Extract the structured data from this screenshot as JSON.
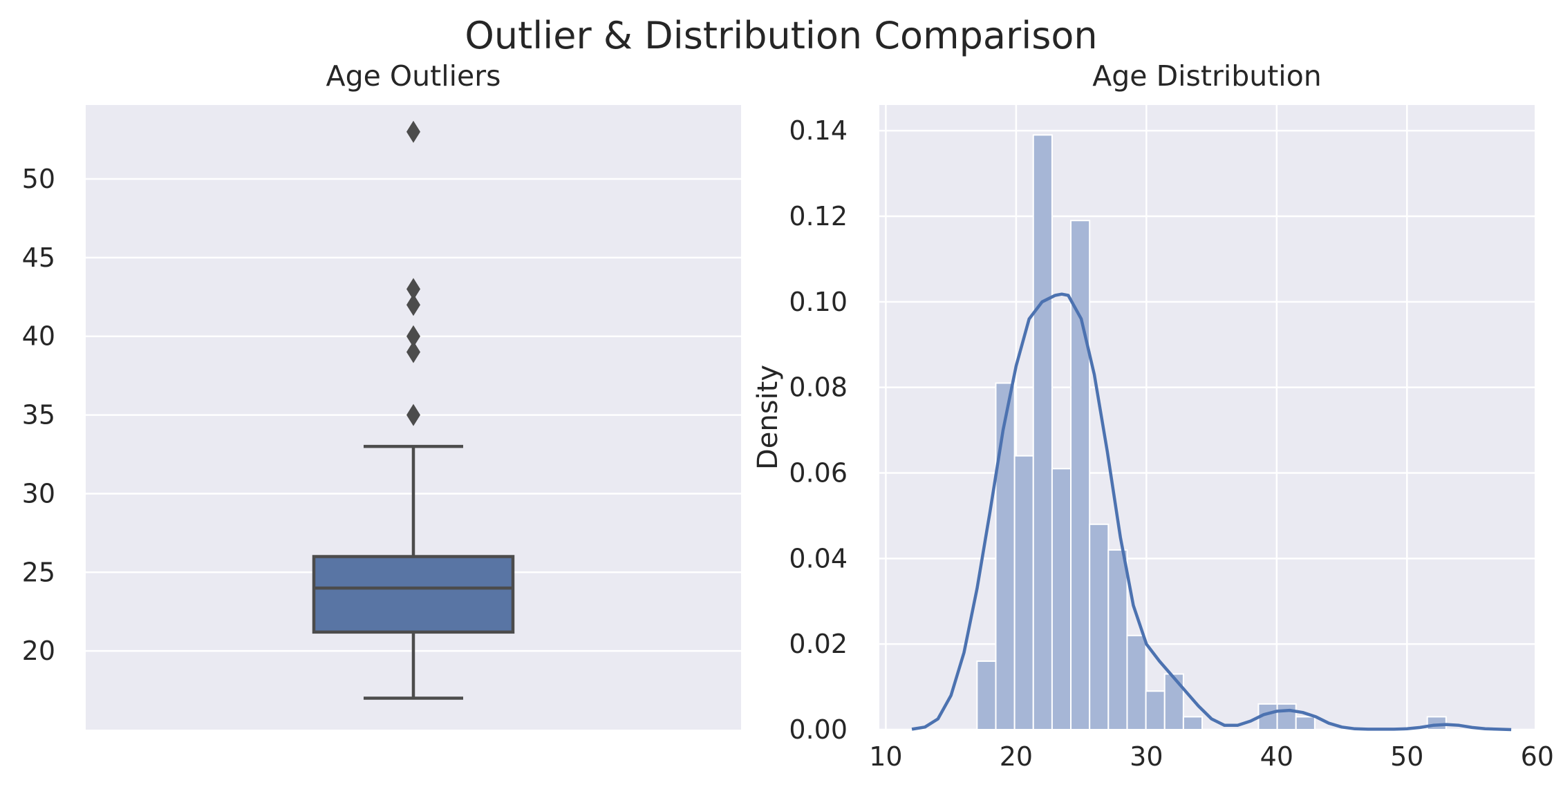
{
  "figure": {
    "title": "Outlier & Distribution Comparison"
  },
  "colors": {
    "panel_bg": "#eaeaf2",
    "grid": "#ffffff",
    "box": "#5975a4",
    "line": "#4c4c4c",
    "hist": "#a6b6d6",
    "kde": "#4c72b0"
  },
  "chart_data": [
    {
      "type": "box",
      "title": "Age Outliers",
      "ylabel": "",
      "ylim": [
        15,
        54.7
      ],
      "yticks": [
        20,
        25,
        30,
        35,
        40,
        45,
        50
      ],
      "stats": {
        "whisker_low": 17,
        "q1": 21.2,
        "median": 24,
        "q3": 26,
        "whisker_high": 33
      },
      "outliers": [
        35,
        39,
        40,
        42,
        43,
        53
      ]
    },
    {
      "type": "histogram",
      "title": "Age Distribution",
      "xlabel": "",
      "ylabel": "Density",
      "xlim": [
        10,
        60
      ],
      "ylim": [
        0,
        0.146
      ],
      "xticks": [
        10,
        20,
        30,
        40,
        50,
        60
      ],
      "yticks": [
        "0.00",
        "0.02",
        "0.04",
        "0.06",
        "0.08",
        "0.10",
        "0.12",
        "0.14"
      ],
      "bin_width": 1.44,
      "bins": [
        {
          "x0": 17.0,
          "density": 0.016
        },
        {
          "x0": 18.44,
          "density": 0.081
        },
        {
          "x0": 19.88,
          "density": 0.064
        },
        {
          "x0": 21.32,
          "density": 0.139
        },
        {
          "x0": 22.76,
          "density": 0.061
        },
        {
          "x0": 24.2,
          "density": 0.119
        },
        {
          "x0": 25.64,
          "density": 0.048
        },
        {
          "x0": 27.08,
          "density": 0.042
        },
        {
          "x0": 28.52,
          "density": 0.022
        },
        {
          "x0": 29.96,
          "density": 0.009
        },
        {
          "x0": 31.4,
          "density": 0.013
        },
        {
          "x0": 32.84,
          "density": 0.003
        },
        {
          "x0": 38.6,
          "density": 0.006
        },
        {
          "x0": 40.04,
          "density": 0.006
        },
        {
          "x0": 41.48,
          "density": 0.003
        },
        {
          "x0": 51.56,
          "density": 0.003
        }
      ],
      "kde": {
        "x": [
          12,
          13,
          14,
          15,
          16,
          17,
          18,
          19,
          20,
          21,
          22,
          23,
          23.5,
          24,
          25,
          26,
          27,
          28,
          29,
          30,
          31,
          32,
          33,
          34,
          35,
          36,
          37,
          38,
          39,
          40,
          41,
          42,
          43,
          44,
          45,
          46,
          47,
          48,
          49,
          50,
          51,
          52,
          53,
          54,
          55,
          56,
          57,
          58
        ],
        "y": [
          0.0001,
          0.0006,
          0.0025,
          0.008,
          0.018,
          0.033,
          0.051,
          0.07,
          0.085,
          0.096,
          0.1,
          0.1015,
          0.1018,
          0.1015,
          0.096,
          0.083,
          0.065,
          0.045,
          0.029,
          0.02,
          0.016,
          0.0125,
          0.009,
          0.0055,
          0.0025,
          0.001,
          0.001,
          0.002,
          0.0035,
          0.0043,
          0.0045,
          0.004,
          0.003,
          0.0015,
          0.0006,
          0.0002,
          0.0001,
          0.0001,
          0.0001,
          0.0002,
          0.0005,
          0.001,
          0.0012,
          0.001,
          0.0005,
          0.0002,
          0.0001,
          0.0
        ]
      }
    }
  ]
}
